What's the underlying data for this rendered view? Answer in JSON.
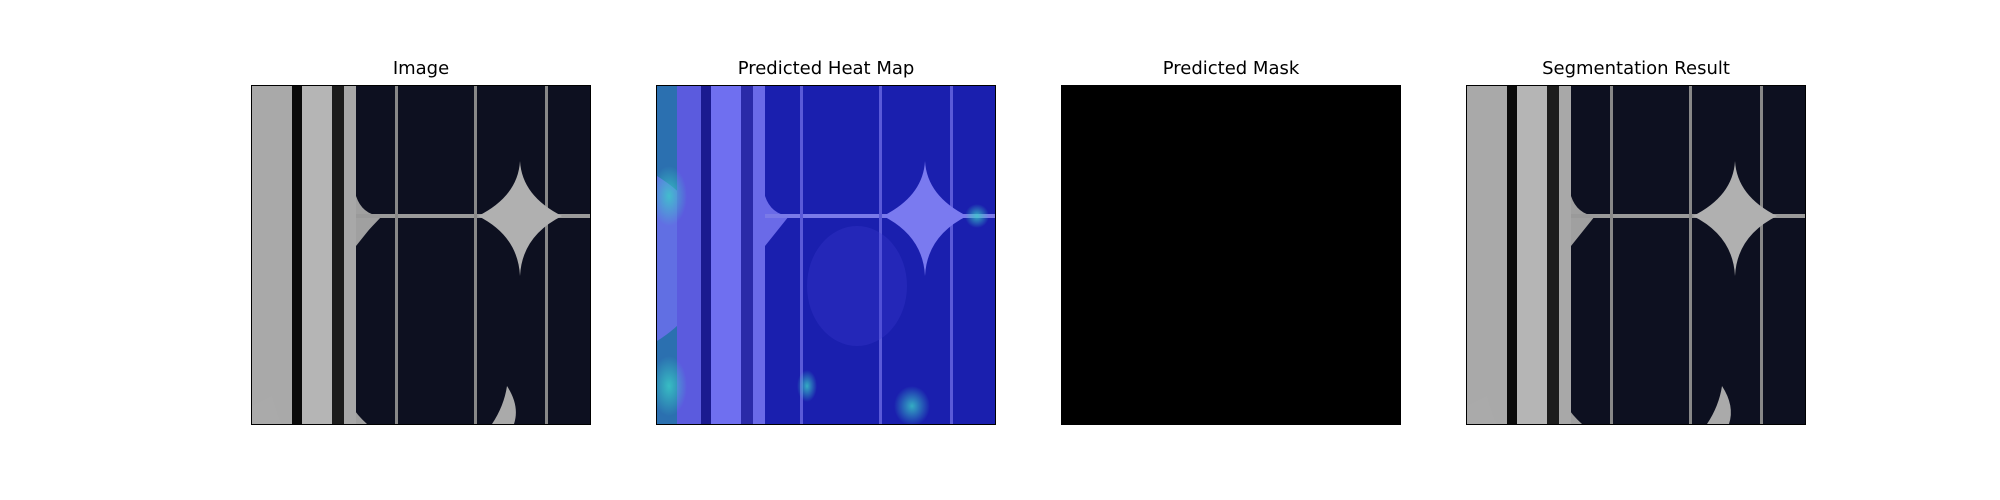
{
  "figure": {
    "panels": [
      {
        "title": "Image",
        "content": "solar-cell-photo"
      },
      {
        "title": "Predicted Heat Map",
        "content": "heat-map-overlay"
      },
      {
        "title": "Predicted Mask",
        "content": "black-mask"
      },
      {
        "title": "Segmentation Result",
        "content": "solar-cell-photo"
      }
    ],
    "colors": {
      "cell_background": "#0d1020",
      "busbar": "#b8b8b8",
      "heat_base": "#1a1fae",
      "heat_highlight": "#6f6ff0",
      "mask": "#000000"
    }
  }
}
